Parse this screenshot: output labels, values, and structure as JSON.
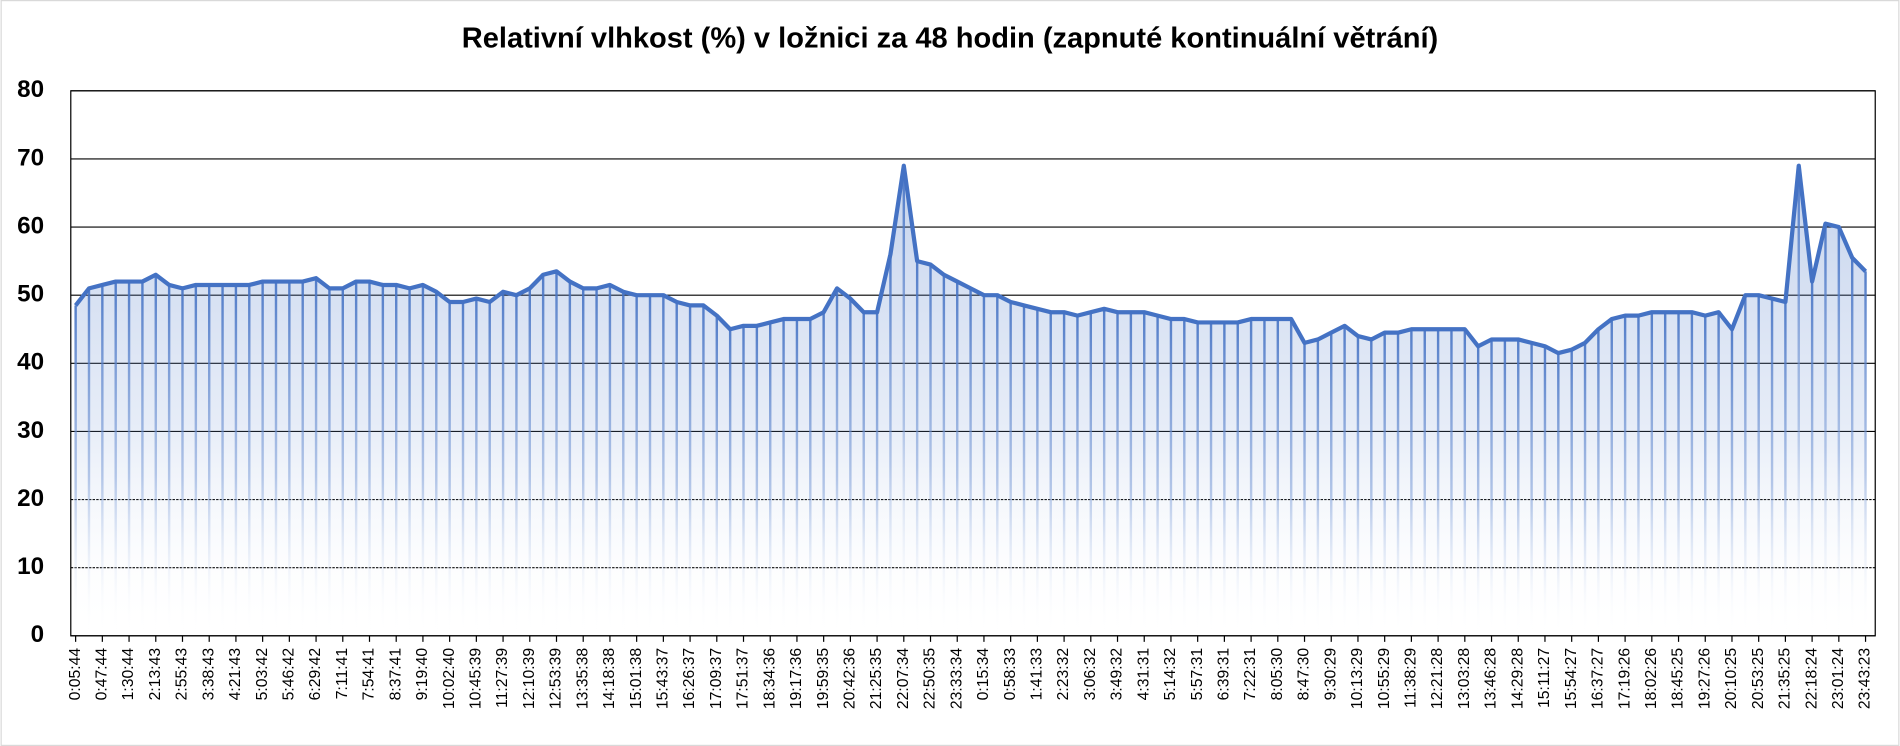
{
  "chart_data": {
    "type": "line",
    "title": "Relativní vlhkost (%) v ložnici za 48 hodin (zapnuté kontinuální větrání)",
    "categories": [
      "0:05:44",
      null,
      "0:47:44",
      null,
      "1:30:44",
      null,
      "2:13:43",
      null,
      "2:55:43",
      null,
      "3:38:43",
      null,
      "4:21:43",
      null,
      "5:03:42",
      null,
      "5:46:42",
      null,
      "6:29:42",
      null,
      "7:11:41",
      null,
      "7:54:41",
      null,
      "8:37:41",
      null,
      "9:19:40",
      null,
      "10:02:40",
      null,
      "10:45:39",
      null,
      "11:27:39",
      null,
      "12:10:39",
      null,
      "12:53:39",
      null,
      "13:35:38",
      null,
      "14:18:38",
      null,
      "15:01:38",
      null,
      "15:43:37",
      null,
      "16:26:37",
      null,
      "17:09:37",
      null,
      "17:51:37",
      null,
      "18:34:36",
      null,
      "19:17:36",
      null,
      "19:59:35",
      null,
      "20:42:36",
      null,
      "21:25:35",
      null,
      "22:07:34",
      null,
      "22:50:35",
      null,
      "23:33:34",
      null,
      "0:15:34",
      null,
      "0:58:33",
      null,
      "1:41:33",
      null,
      "2:23:32",
      null,
      "3:06:32",
      null,
      "3:49:32",
      null,
      "4:31:31",
      null,
      "5:14:32",
      null,
      "5:57:31",
      null,
      "6:39:31",
      null,
      "7:22:31",
      null,
      "8:05:30",
      null,
      "8:47:30",
      null,
      "9:30:29",
      null,
      "10:13:29",
      null,
      "10:55:29",
      null,
      "11:38:29",
      null,
      "12:21:28",
      null,
      "13:03:28",
      null,
      "13:46:28",
      null,
      "14:29:28",
      null,
      "15:11:27",
      null,
      "15:54:27",
      null,
      "16:37:27",
      null,
      "17:19:26",
      null,
      "18:02:26",
      null,
      "18:45:25",
      null,
      "19:27:26",
      null,
      "20:10:25",
      null,
      "20:53:25",
      null,
      "21:35:25",
      null,
      "22:18:24",
      null,
      "23:01:24",
      null,
      "23:43:23"
    ],
    "values": [
      48.5,
      51,
      51.5,
      52,
      52,
      52,
      53,
      51.5,
      51,
      51.5,
      51.5,
      51.5,
      51.5,
      51.5,
      52,
      52,
      52,
      52,
      52.5,
      51,
      51,
      52,
      52,
      51.5,
      51.5,
      51,
      51.5,
      50.5,
      49,
      49,
      49.5,
      49,
      50.5,
      50,
      51,
      53,
      53.5,
      52,
      51,
      51,
      51.5,
      50.5,
      50,
      50,
      50,
      49,
      48.5,
      48.5,
      47,
      45,
      45.5,
      45.5,
      46,
      46.5,
      46.5,
      46.5,
      47.5,
      51,
      49.5,
      47.5,
      47.5,
      56,
      69,
      55,
      54.5,
      53,
      52,
      51,
      50,
      50,
      49,
      48.5,
      48,
      47.5,
      47.5,
      47,
      47.5,
      48,
      47.5,
      47.5,
      47.5,
      47,
      46.5,
      46.5,
      46,
      46,
      46,
      46,
      46.5,
      46.5,
      46.5,
      46.5,
      43,
      43.5,
      44.5,
      45.5,
      44,
      43.5,
      44.5,
      44.5,
      45,
      45,
      45,
      45,
      45,
      42.5,
      43.5,
      43.5,
      43.5,
      43,
      42.5,
      41.5,
      42,
      43,
      45,
      46.5,
      47,
      47,
      47.5,
      47.5,
      47.5,
      47.5,
      47,
      47.5,
      45,
      50,
      50,
      49.5,
      49,
      69,
      52,
      60.5,
      60,
      55.5,
      53.5
    ],
    "color": "#4472c4",
    "ylim": [
      0,
      80
    ],
    "yticks": [
      0,
      10,
      20,
      30,
      40,
      50,
      60,
      70,
      80
    ],
    "grid": true
  }
}
